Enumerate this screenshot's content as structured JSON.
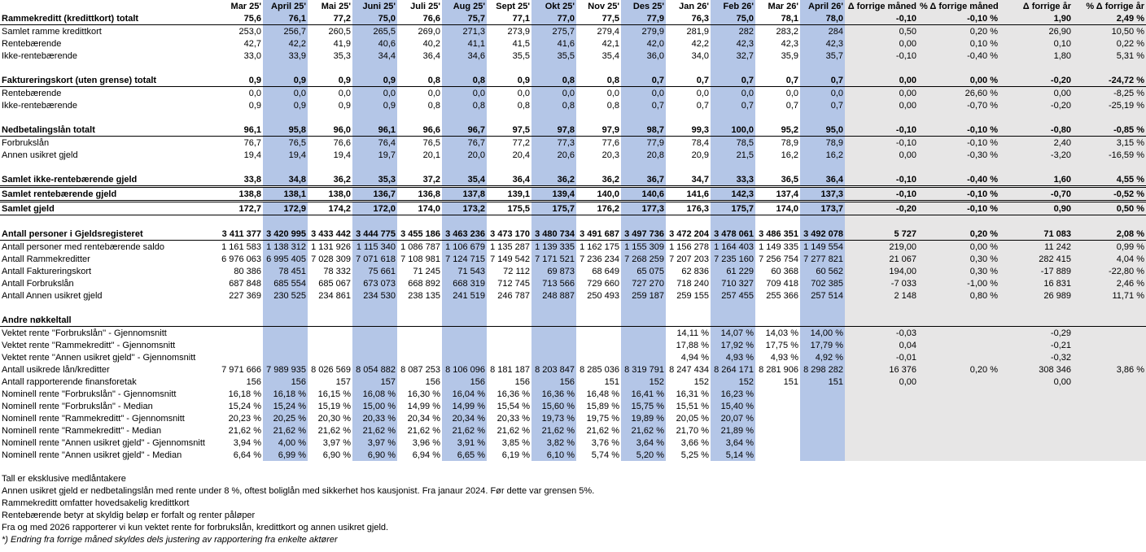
{
  "colors": {
    "highlight_month": "#b4c6e7",
    "change_columns": "#e7e6e6"
  },
  "header": [
    "",
    "Mar 25'",
    "April 25'",
    "Mai 25'",
    "Juni 25'",
    "Juli 25'",
    "Aug 25'",
    "Sept 25'",
    "Okt 25'",
    "Nov 25'",
    "Des 25'",
    "Jan 26'",
    "Feb 26'",
    "Mar 26'",
    "April 26'",
    "Δ forrige måned",
    "% Δ forrige måned",
    "Δ forrige år",
    "% Δ forrige år"
  ],
  "rows": [
    {
      "bold": true,
      "line": "bline",
      "cells": [
        "Rammekreditt (kredittkort) totalt",
        "75,6",
        "76,1",
        "77,2",
        "75,0",
        "76,6",
        "75,7",
        "77,1",
        "77,0",
        "77,5",
        "77,9",
        "76,3",
        "75,0",
        "78,1",
        "78,0",
        "-0,10",
        "-0,10 %",
        "1,90",
        "2,49 %"
      ]
    },
    {
      "cells": [
        "Samlet ramme kredittkort",
        "253,0",
        "256,7",
        "260,5",
        "265,5",
        "269,0",
        "271,3",
        "273,9",
        "275,7",
        "279,4",
        "279,9",
        "281,9",
        "282",
        "283,2",
        "284",
        "0,50",
        "0,20 %",
        "26,90",
        "10,50 %"
      ]
    },
    {
      "cells": [
        "Rentebærende",
        "42,7",
        "42,2",
        "41,9",
        "40,6",
        "40,2",
        "41,1",
        "41,5",
        "41,6",
        "42,1",
        "42,0",
        "42,2",
        "42,3",
        "42,3",
        "42,3",
        "0,00",
        "0,10 %",
        "0,10",
        "0,22 %"
      ]
    },
    {
      "cells": [
        "Ikke-rentebærende",
        "33,0",
        "33,9",
        "35,3",
        "34,4",
        "36,4",
        "34,6",
        "35,5",
        "35,5",
        "35,4",
        "36,0",
        "34,0",
        "32,7",
        "35,9",
        "35,7",
        "-0,10",
        "-0,40 %",
        "1,80",
        "5,31 %"
      ]
    },
    {
      "cells": [
        "",
        "",
        "",
        "",
        "",
        "",
        "",
        "",
        "",
        "",
        "",
        "",
        "",
        "",
        "",
        "",
        "",
        "",
        ""
      ]
    },
    {
      "bold": true,
      "line": "bline",
      "cells": [
        "Faktureringskort (uten grense) totalt",
        "0,9",
        "0,9",
        "0,9",
        "0,9",
        "0,8",
        "0,8",
        "0,9",
        "0,8",
        "0,8",
        "0,7",
        "0,7",
        "0,7",
        "0,7",
        "0,7",
        "0,00",
        "0,00 %",
        "-0,20",
        "-24,72 %"
      ]
    },
    {
      "cells": [
        "Rentebærende",
        "0,0",
        "0,0",
        "0,0",
        "0,0",
        "0,0",
        "0,0",
        "0,0",
        "0,0",
        "0,0",
        "0,0",
        "0,0",
        "0,0",
        "0,0",
        "0,0",
        "0,00",
        "26,60 %",
        "0,00",
        "-8,25 %"
      ]
    },
    {
      "cells": [
        "Ikke-rentebærende",
        "0,9",
        "0,9",
        "0,9",
        "0,9",
        "0,8",
        "0,8",
        "0,8",
        "0,8",
        "0,8",
        "0,7",
        "0,7",
        "0,7",
        "0,7",
        "0,7",
        "0,00",
        "-0,70 %",
        "-0,20",
        "-25,19 %"
      ]
    },
    {
      "cells": [
        "",
        "",
        "",
        "",
        "",
        "",
        "",
        "",
        "",
        "",
        "",
        "",
        "",
        "",
        "",
        "",
        "",
        "",
        ""
      ]
    },
    {
      "bold": true,
      "line": "bline",
      "cells": [
        "Nedbetalingslån totalt",
        "96,1",
        "95,8",
        "96,0",
        "96,1",
        "96,6",
        "96,7",
        "97,5",
        "97,8",
        "97,9",
        "98,7",
        "99,3",
        "100,0",
        "95,2",
        "95,0",
        "-0,10",
        "-0,10 %",
        "-0,80",
        "-0,85 %"
      ]
    },
    {
      "cells": [
        "Forbrukslån",
        "76,7",
        "76,5",
        "76,6",
        "76,4",
        "76,5",
        "76,7",
        "77,2",
        "77,3",
        "77,6",
        "77,9",
        "78,4",
        "78,5",
        "78,9",
        "78,9",
        "-0,10",
        "-0,10 %",
        "2,40",
        "3,15 %"
      ]
    },
    {
      "cells": [
        "Annen usikret gjeld",
        "19,4",
        "19,4",
        "19,4",
        "19,7",
        "20,1",
        "20,0",
        "20,4",
        "20,6",
        "20,3",
        "20,8",
        "20,9",
        "21,5",
        "16,2",
        "16,2",
        "0,00",
        "-0,30 %",
        "-3,20",
        "-16,59 %"
      ]
    },
    {
      "cells": [
        "",
        "",
        "",
        "",
        "",
        "",
        "",
        "",
        "",
        "",
        "",
        "",
        "",
        "",
        "",
        "",
        "",
        "",
        ""
      ]
    },
    {
      "bold": true,
      "line": "dline",
      "cells": [
        "Samlet ikke-rentebærende gjeld",
        "33,8",
        "34,8",
        "36,2",
        "35,3",
        "37,2",
        "35,4",
        "36,4",
        "36,2",
        "36,2",
        "36,7",
        "34,7",
        "33,3",
        "36,5",
        "36,4",
        "-0,10",
        "-0,40 %",
        "1,60",
        "4,55 %"
      ]
    },
    {
      "bold": true,
      "line": "dline",
      "cells": [
        "Samlet rentebærende gjeld",
        "138,8",
        "138,1",
        "138,0",
        "136,7",
        "136,8",
        "137,8",
        "139,1",
        "139,4",
        "140,0",
        "140,6",
        "141,6",
        "142,3",
        "137,4",
        "137,3",
        "-0,10",
        "-0,10 %",
        "-0,70",
        "-0,52 %"
      ]
    },
    {
      "bold": true,
      "line": "bline",
      "cells": [
        "Samlet gjeld",
        "172,7",
        "172,9",
        "174,2",
        "172,0",
        "174,0",
        "173,2",
        "175,5",
        "175,7",
        "176,2",
        "177,3",
        "176,3",
        "175,7",
        "174,0",
        "173,7",
        "-0,20",
        "-0,10 %",
        "0,90",
        "0,50 %"
      ]
    },
    {
      "cells": [
        "",
        "",
        "",
        "",
        "",
        "",
        "",
        "",
        "",
        "",
        "",
        "",
        "",
        "",
        "",
        "",
        "",
        "",
        ""
      ]
    },
    {
      "bold": true,
      "line": "bline",
      "cells": [
        "Antall personer i Gjeldsregisteret",
        "3 411 377",
        "3 420 995",
        "3 433 442",
        "3 444 775",
        "3 455 186",
        "3 463 236",
        "3 473 170",
        "3 480 734",
        "3 491 687",
        "3 497 736",
        "3 472 204",
        "3 478 061",
        "3 486 351",
        "3 492 078",
        "5 727",
        "0,20 %",
        "71 083",
        "2,08 %"
      ]
    },
    {
      "cells": [
        "Antall personer med rentebærende saldo",
        "1 161 583",
        "1 138 312",
        "1 131 926",
        "1 115 340",
        "1 086 787",
        "1 106 679",
        "1 135 287",
        "1 139 335",
        "1 162 175",
        "1 155 309",
        "1 156 278",
        "1 164 403",
        "1 149 335",
        "1 149 554",
        "219,00",
        "0,00 %",
        "11 242",
        "0,99 %"
      ]
    },
    {
      "cells": [
        "Antall Rammekreditter",
        "6 976 063",
        "6 995 405",
        "7 028 309",
        "7 071 618",
        "7 108 981",
        "7 124 715",
        "7 149 542",
        "7 171 521",
        "7 236 234",
        "7 268 259",
        "7 207 203",
        "7 235 160",
        "7 256 754",
        "7 277 821",
        "21 067",
        "0,30 %",
        "282 415",
        "4,04 %"
      ]
    },
    {
      "cells": [
        "Antall Faktureringskort",
        "80 386",
        "78 451",
        "78 332",
        "75 661",
        "71 245",
        "71 543",
        "72 112",
        "69 873",
        "68 649",
        "65 075",
        "62 836",
        "61 229",
        "60 368",
        "60 562",
        "194,00",
        "0,30 %",
        "-17 889",
        "-22,80 %"
      ]
    },
    {
      "cells": [
        "Antall Forbrukslån",
        "687 848",
        "685 554",
        "685 067",
        "673 073",
        "668 892",
        "668 319",
        "712 745",
        "713 566",
        "729 660",
        "727 270",
        "718 240",
        "710 327",
        "709 418",
        "702 385",
        "-7 033",
        "-1,00 %",
        "16 831",
        "2,46 %"
      ]
    },
    {
      "cells": [
        "Antall Annen usikret gjeld",
        "227 369",
        "230 525",
        "234 861",
        "234 530",
        "238 135",
        "241 519",
        "246 787",
        "248 887",
        "250 493",
        "259 187",
        "259 155",
        "257 455",
        "255 366",
        "257 514",
        "2 148",
        "0,80 %",
        "26 989",
        "11,71 %"
      ]
    },
    {
      "cells": [
        "",
        "",
        "",
        "",
        "",
        "",
        "",
        "",
        "",
        "",
        "",
        "",
        "",
        "",
        "",
        "",
        "",
        "",
        ""
      ]
    },
    {
      "bold": true,
      "line": "bline",
      "cells": [
        "Andre nøkkeltall",
        "",
        "",
        "",
        "",
        "",
        "",
        "",
        "",
        "",
        "",
        "",
        "",
        "",
        "",
        "",
        "",
        "",
        ""
      ]
    },
    {
      "cells": [
        "Vektet rente ''Forbrukslån'' - Gjennomsnitt",
        "",
        "",
        "",
        "",
        "",
        "",
        "",
        "",
        "",
        "",
        "14,11 %",
        "14,07 %",
        "14,03 %",
        "14,00 %",
        "-0,03",
        "",
        "-0,29",
        ""
      ]
    },
    {
      "cells": [
        "Vektet rente ''Rammekreditt'' - Gjennomsnitt",
        "",
        "",
        "",
        "",
        "",
        "",
        "",
        "",
        "",
        "",
        "17,88 %",
        "17,92 %",
        "17,75 %",
        "17,79 %",
        "0,04",
        "",
        "-0,21",
        ""
      ]
    },
    {
      "cells": [
        "Vektet rente ''Annen usikret gjeld'' - Gjennomsnitt",
        "",
        "",
        "",
        "",
        "",
        "",
        "",
        "",
        "",
        "",
        "4,94 %",
        "4,93 %",
        "4,93 %",
        "4,92 %",
        "-0,01",
        "",
        "-0,32",
        ""
      ]
    },
    {
      "cells": [
        "Antall usikrede lån/kreditter",
        "7 971 666",
        "7 989 935",
        "8 026 569",
        "8 054 882",
        "8 087 253",
        "8 106 096",
        "8 181 187",
        "8 203 847",
        "8 285 036",
        "8 319 791",
        "8 247 434",
        "8 264 171",
        "8 281 906",
        "8 298 282",
        "16 376",
        "0,20 %",
        "308 346",
        "3,86 %"
      ]
    },
    {
      "cells": [
        "Antall rapporterende finansforetak",
        "156",
        "156",
        "157",
        "157",
        "156",
        "156",
        "156",
        "156",
        "151",
        "152",
        "152",
        "152",
        "151",
        "151",
        "0,00",
        "",
        "0,00",
        ""
      ]
    },
    {
      "cells": [
        "Nominell rente \"Forbrukslån\" - Gjennomsnitt",
        "16,18 %",
        "16,18 %",
        "16,15 %",
        "16,08 %",
        "16,30 %",
        "16,04 %",
        "16,36 %",
        "16,36 %",
        "16,48 %",
        "16,41 %",
        "16,31 %",
        "16,23 %",
        "",
        "",
        "",
        "",
        "",
        ""
      ]
    },
    {
      "cells": [
        "Nominell rente \"Forbrukslån\" - Median",
        "15,24 %",
        "15,24 %",
        "15,19 %",
        "15,00 %",
        "14,99 %",
        "14,99 %",
        "15,54 %",
        "15,60 %",
        "15,89 %",
        "15,75 %",
        "15,51 %",
        "15,40 %",
        "",
        "",
        "",
        "",
        "",
        ""
      ]
    },
    {
      "cells": [
        "Nominell rente \"Rammekreditt\" - Gjennomsnitt",
        "20,23 %",
        "20,25 %",
        "20,30 %",
        "20,33 %",
        "20,34 %",
        "20,34 %",
        "20,33 %",
        "19,73 %",
        "19,75 %",
        "19,89 %",
        "20,05 %",
        "20,07 %",
        "",
        "",
        "",
        "",
        "",
        ""
      ]
    },
    {
      "cells": [
        "Nominell rente \"Rammekreditt\" - Median",
        "21,62 %",
        "21,62 %",
        "21,62 %",
        "21,62 %",
        "21,62 %",
        "21,62 %",
        "21,62 %",
        "21,62 %",
        "21,62 %",
        "21,62 %",
        "21,70 %",
        "21,89 %",
        "",
        "",
        "",
        "",
        "",
        ""
      ]
    },
    {
      "cells": [
        "Nominell rente \"Annen usikret gjeld\" - Gjennomsnitt",
        "3,94 %",
        "4,00 %",
        "3,97 %",
        "3,97 %",
        "3,96 %",
        "3,91 %",
        "3,85 %",
        "3,82 %",
        "3,76 %",
        "3,64 %",
        "3,66 %",
        "3,64 %",
        "",
        "",
        "",
        "",
        "",
        ""
      ]
    },
    {
      "cells": [
        "Nominell rente \"Annen usikret gjeld\" - Median",
        "6,64 %",
        "6,99 %",
        "6,90 %",
        "6,90 %",
        "6,94 %",
        "6,65 %",
        "6,19 %",
        "6,10 %",
        "5,74 %",
        "5,20 %",
        "5,25 %",
        "5,14 %",
        "",
        "",
        "",
        "",
        "",
        ""
      ]
    }
  ],
  "notes": [
    "Tall er eksklusive medlåntakere",
    "Annen usikret gjeld er nedbetalingslån med rente under 8 %, oftest boliglån med sikkerhet hos kausjonist. Fra janaur 2024. Før dette var grensen 5%.",
    "Rammekreditt omfatter hovedsakelig kredittkort",
    "Rentebærende betyr at skyldig beløp er forfalt og renter påløper",
    "Fra og med 2026 rapporterer vi kun vektet rente for forbrukslån, kredittkort og annen usikret gjeld.",
    "*) Endring fra forrige måned skyldes dels justering av rapportering fra enkelte aktører"
  ]
}
